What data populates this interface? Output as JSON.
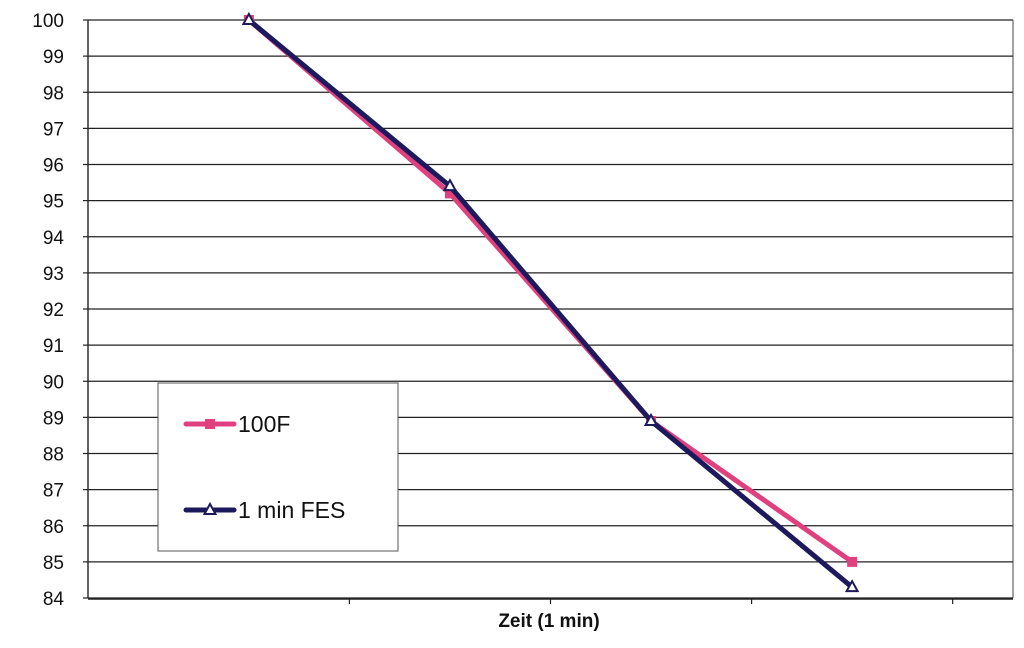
{
  "chart_data": {
    "type": "line",
    "title": "",
    "xlabel": "Zeit (1 min)",
    "ylabel": "",
    "x": [
      1,
      2,
      3,
      4
    ],
    "xlim": [
      0.2,
      4.8
    ],
    "ylim": [
      84,
      100
    ],
    "yticks": [
      100,
      99,
      98,
      97,
      96,
      95,
      94,
      93,
      92,
      91,
      90,
      89,
      88,
      87,
      86,
      85,
      84
    ],
    "grid": true,
    "legend_position": "lower-left",
    "series": [
      {
        "name": "100F",
        "values": [
          100,
          95.2,
          88.9,
          85.0
        ],
        "color": "#e0407e",
        "marker": "square"
      },
      {
        "name": "1 min FES",
        "values": [
          100,
          95.4,
          88.9,
          84.3
        ],
        "color": "#1c1a5c",
        "marker": "triangle"
      }
    ]
  }
}
